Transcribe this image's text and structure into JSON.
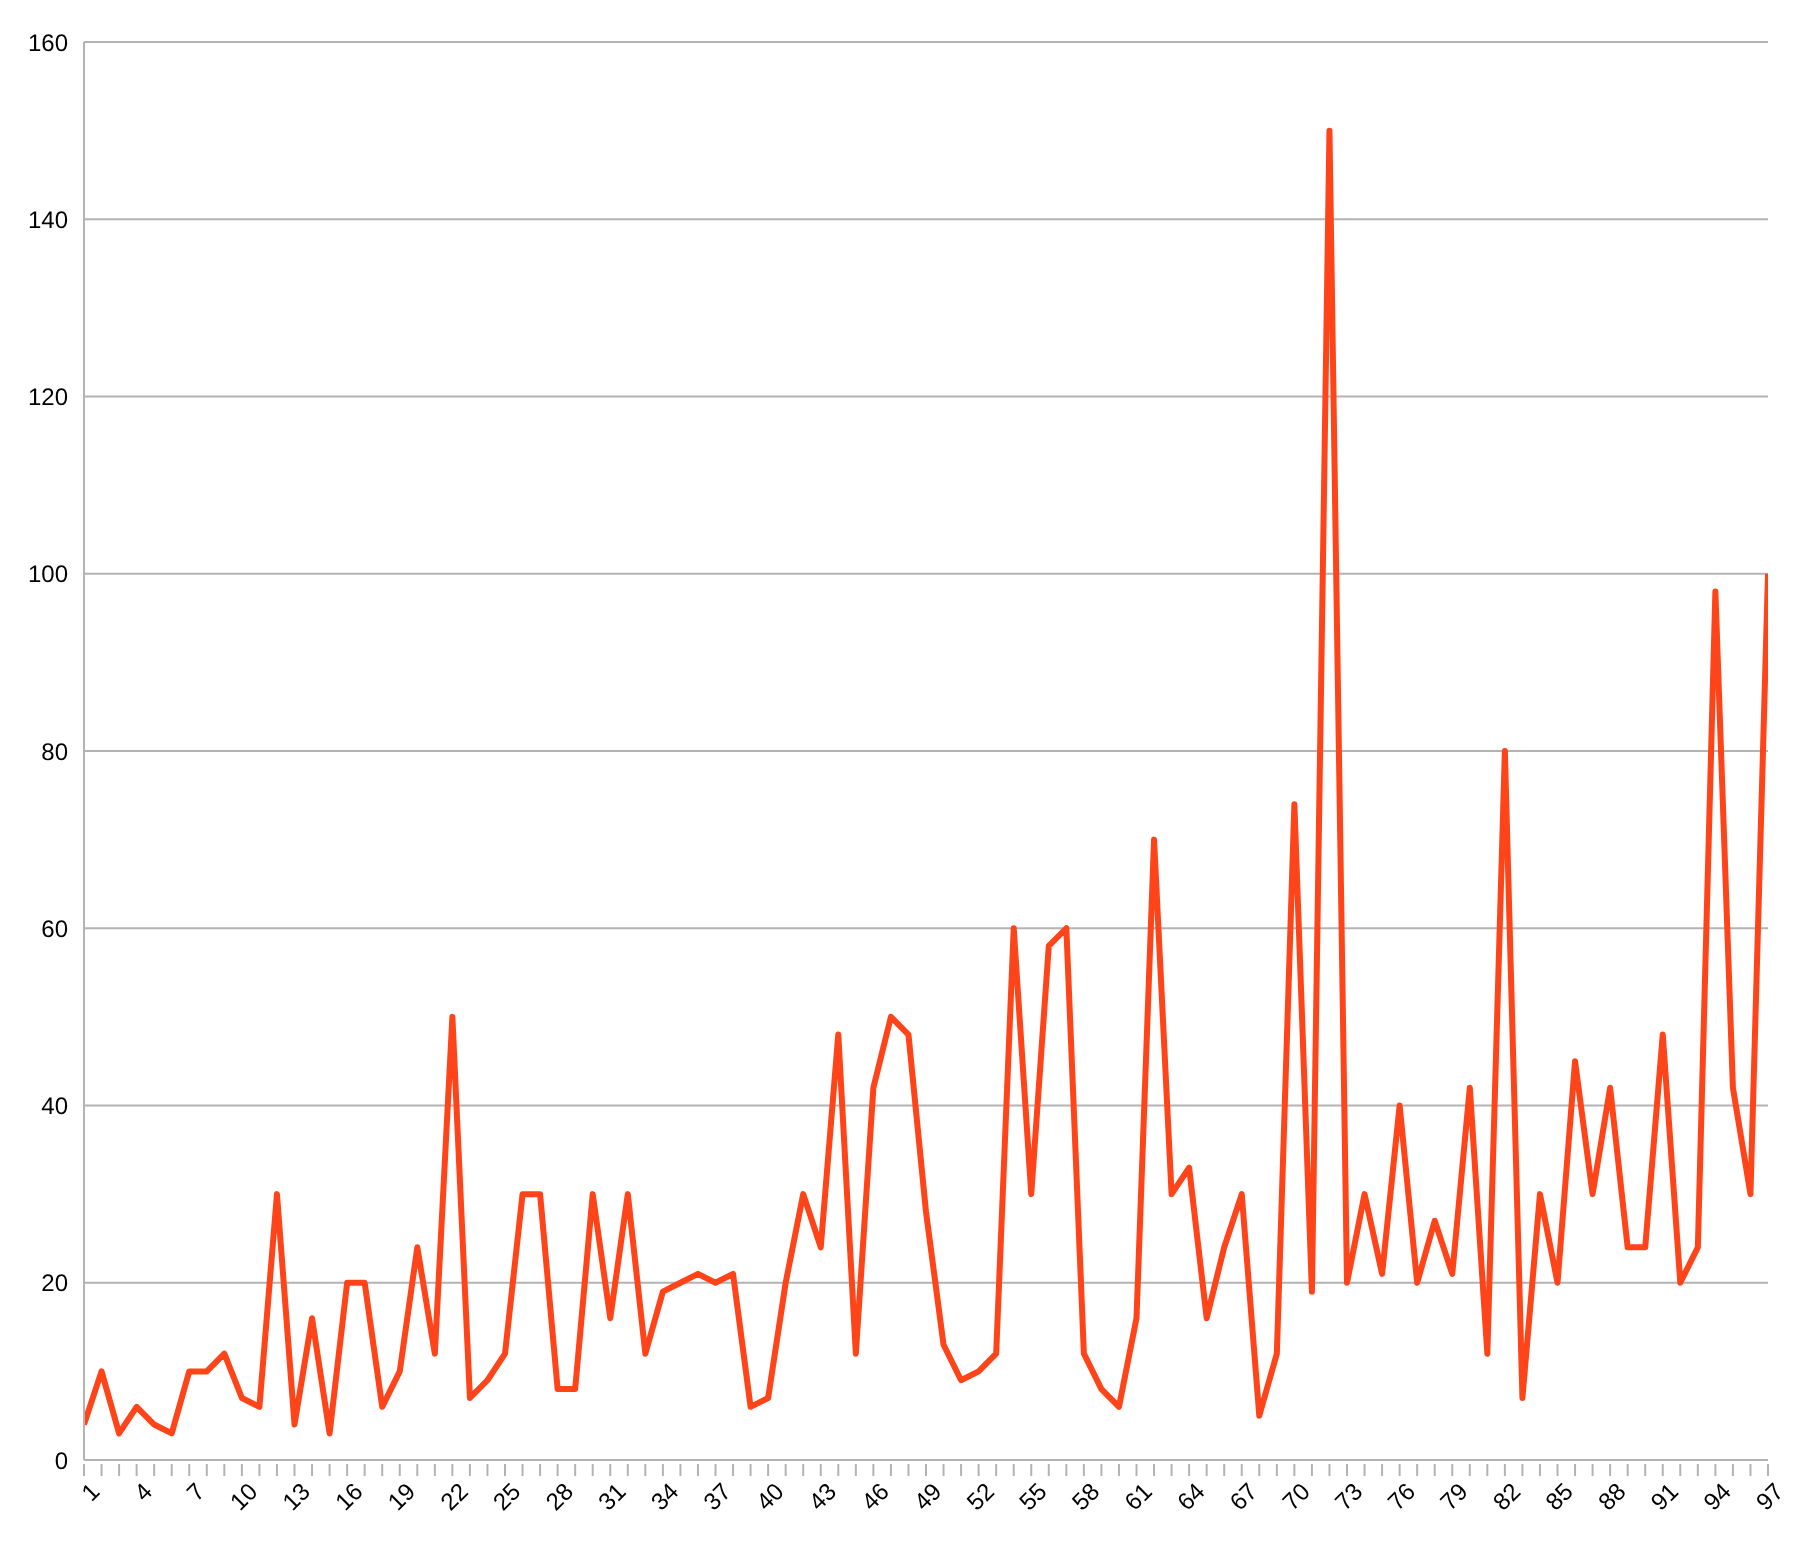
{
  "chart_data": {
    "type": "line",
    "categories": [
      "1",
      null,
      null,
      "4",
      null,
      null,
      "7",
      null,
      null,
      "10",
      null,
      null,
      "13",
      null,
      null,
      "16",
      null,
      null,
      "19",
      null,
      null,
      "22",
      null,
      null,
      "25",
      null,
      null,
      "28",
      null,
      null,
      "31",
      null,
      null,
      "34",
      null,
      null,
      "37",
      null,
      null,
      "40",
      null,
      null,
      "43",
      null,
      null,
      "46",
      null,
      null,
      "49",
      null,
      null,
      "52",
      null,
      null,
      "55",
      null,
      null,
      "58",
      null,
      null,
      "61",
      null,
      null,
      "64",
      null,
      null,
      "67",
      null,
      null,
      "70",
      null,
      null,
      "73",
      null,
      null,
      "76",
      null,
      null,
      "79",
      null,
      null,
      "82",
      null,
      null,
      "85",
      null,
      null,
      "88",
      null,
      null,
      "91",
      null,
      null,
      "94",
      null,
      null,
      "97"
    ],
    "series": [
      {
        "color": "#ff4419",
        "values": [
          4,
          10,
          3,
          6,
          4,
          3,
          10,
          10,
          12,
          7,
          6,
          30,
          4,
          16,
          3,
          20,
          20,
          6,
          10,
          24,
          12,
          50,
          7,
          9,
          12,
          30,
          30,
          8,
          8,
          30,
          16,
          30,
          12,
          19,
          20,
          21,
          20,
          21,
          6,
          7,
          20,
          30,
          24,
          48,
          12,
          42,
          50,
          48,
          28,
          13,
          9,
          10,
          12,
          60,
          30,
          58,
          60,
          12,
          8,
          6,
          16,
          70,
          30,
          33,
          16,
          24,
          30,
          5,
          12,
          74,
          19,
          150,
          20,
          30,
          21,
          40,
          20,
          27,
          21,
          42,
          12,
          80,
          7,
          30,
          20,
          45,
          30,
          42,
          24,
          24,
          48,
          20,
          24,
          98,
          42,
          30,
          100
        ]
      }
    ],
    "ylim": [
      0,
      160
    ],
    "yticks": [
      0,
      20,
      40,
      60,
      80,
      100,
      120,
      140,
      160
    ],
    "grid": "y",
    "legend": false,
    "marker": "none",
    "line_style": "solid"
  }
}
